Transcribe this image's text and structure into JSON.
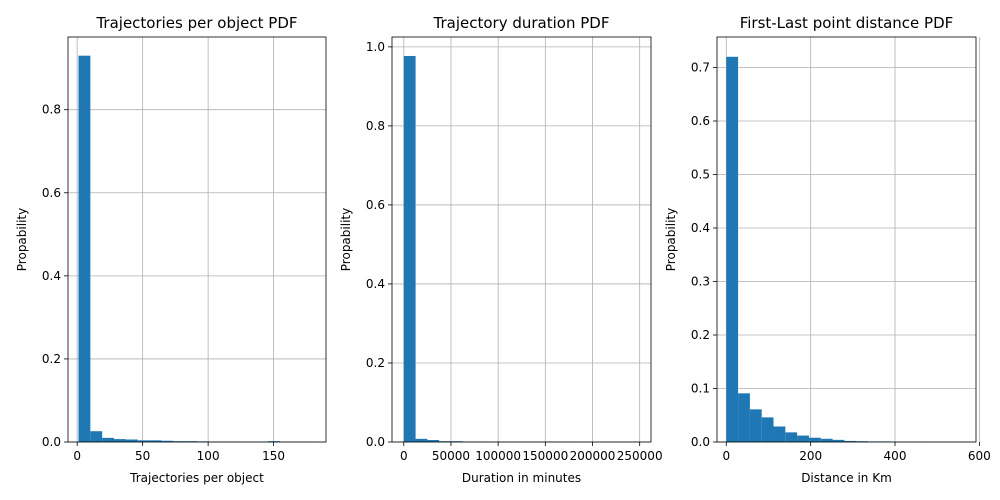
{
  "chart_data": [
    {
      "type": "bar",
      "title": "Trajectories per object PDF",
      "xlabel": "Trajectories per object",
      "ylabel": "Propability",
      "xlim": [
        -7,
        190
      ],
      "ylim": [
        0,
        0.975
      ],
      "xticks": [
        0,
        50,
        100,
        150
      ],
      "yticks": [
        0.0,
        0.2,
        0.4,
        0.6,
        0.8
      ],
      "tick_labels_x": [
        "0",
        "50",
        "100",
        "150"
      ],
      "tick_labels_y": [
        "0.0",
        "0.2",
        "0.4",
        "0.6",
        "0.8"
      ],
      "grid": true,
      "color": "#1f77b4",
      "bin_edges": [
        1,
        10.05,
        19.1,
        28.15,
        37.2,
        46.25,
        55.3,
        64.35,
        73.4,
        82.45,
        91.5,
        100.55,
        109.6,
        118.65,
        127.7,
        136.75,
        145.8,
        154.85,
        163.9,
        172.95,
        182
      ],
      "values": [
        0.93,
        0.026,
        0.01,
        0.007,
        0.006,
        0.004,
        0.004,
        0.003,
        0.002,
        0.002,
        0.0015,
        0.001,
        0.001,
        0.001,
        0.0005,
        0.0005,
        0.002,
        0.0005,
        0.0003,
        0.0003
      ]
    },
    {
      "type": "bar",
      "title": "Trajectory duration PDF",
      "xlabel": "Duration in minutes",
      "ylabel": "Propability",
      "xlim": [
        -12500,
        262000
      ],
      "ylim": [
        0,
        1.025
      ],
      "xticks": [
        0,
        50000,
        100000,
        150000,
        200000,
        250000
      ],
      "yticks": [
        0.0,
        0.2,
        0.4,
        0.6,
        0.8,
        1.0
      ],
      "tick_labels_x": [
        "0",
        "50000",
        "100000",
        "150000",
        "200000",
        "250000"
      ],
      "tick_labels_y": [
        "0.0",
        "0.2",
        "0.4",
        "0.6",
        "0.8",
        "1.0"
      ],
      "grid": true,
      "color": "#1f77b4",
      "bin_edges": [
        0,
        12500,
        25000,
        37500,
        50000,
        62500,
        75000,
        87500,
        100000,
        112500,
        125000,
        137500,
        150000,
        162500,
        175000,
        187500,
        200000,
        212500,
        225000,
        237500,
        250000
      ],
      "values": [
        0.977,
        0.008,
        0.005,
        0.002,
        0.002,
        0.001,
        0.001,
        0.0008,
        0.0008,
        0.0008,
        0.0008,
        0.0008,
        0.0008,
        0.0003,
        0.0002,
        0.0002,
        0.0002,
        0.0002,
        0.0002,
        0.0002
      ]
    },
    {
      "type": "bar",
      "title": "First-Last point distance PDF",
      "xlabel": "Distance in Km",
      "ylabel": "Propability",
      "xlim": [
        -22,
        592
      ],
      "ylim": [
        0,
        0.757
      ],
      "xticks": [
        0,
        200,
        400,
        600
      ],
      "yticks": [
        0.0,
        0.1,
        0.2,
        0.3,
        0.4,
        0.5,
        0.6,
        0.7
      ],
      "tick_labels_x": [
        "0",
        "200",
        "400",
        "600"
      ],
      "tick_labels_y": [
        "0.0",
        "0.1",
        "0.2",
        "0.3",
        "0.4",
        "0.5",
        "0.6",
        "0.7"
      ],
      "grid": true,
      "color": "#1f77b4",
      "bin_edges": [
        0,
        28,
        56,
        84,
        112,
        140,
        168,
        196,
        224,
        252,
        280,
        308,
        336,
        364,
        392,
        420,
        448,
        476,
        504,
        532,
        560
      ],
      "values": [
        0.72,
        0.091,
        0.061,
        0.046,
        0.029,
        0.018,
        0.012,
        0.008,
        0.006,
        0.004,
        0.002,
        0.0015,
        0.001,
        0.001,
        0.0005,
        0.0003,
        0.0003,
        0.0002,
        0.0002,
        0.0002
      ]
    }
  ]
}
